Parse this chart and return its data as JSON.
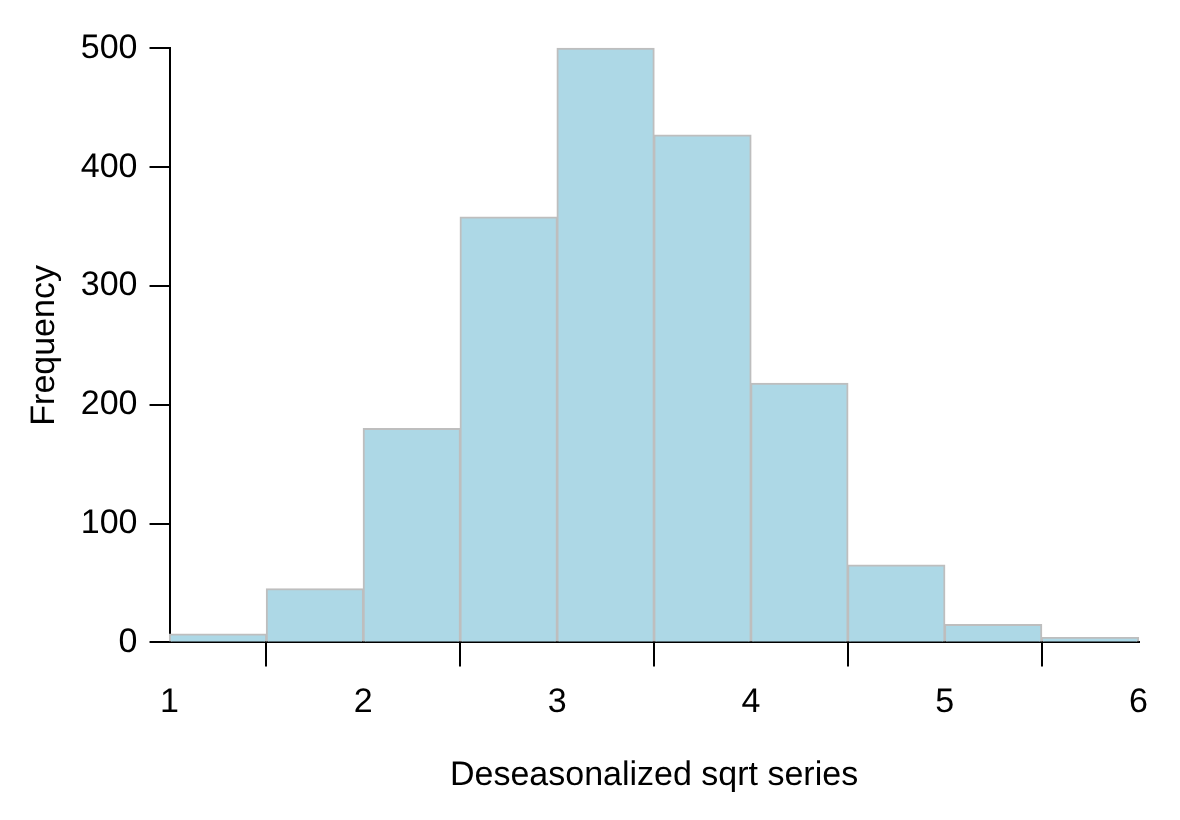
{
  "chart_data": {
    "type": "histogram",
    "xlabel": "Deseasonalized sqrt series",
    "ylabel": "Frequency",
    "bins": [
      1,
      1.5,
      2,
      2.5,
      3,
      3.5,
      4,
      4.5,
      5,
      5.5,
      6
    ],
    "values": [
      7,
      45,
      180,
      358,
      500,
      427,
      218,
      65,
      15,
      4
    ],
    "color": "#add8e6",
    "xlim": [
      1,
      6
    ],
    "xticks": [
      1,
      2,
      3,
      4,
      5,
      6
    ],
    "ylim": [
      0,
      500
    ],
    "yticks": [
      0,
      100,
      200,
      300,
      400,
      500
    ],
    "grid": false
  }
}
